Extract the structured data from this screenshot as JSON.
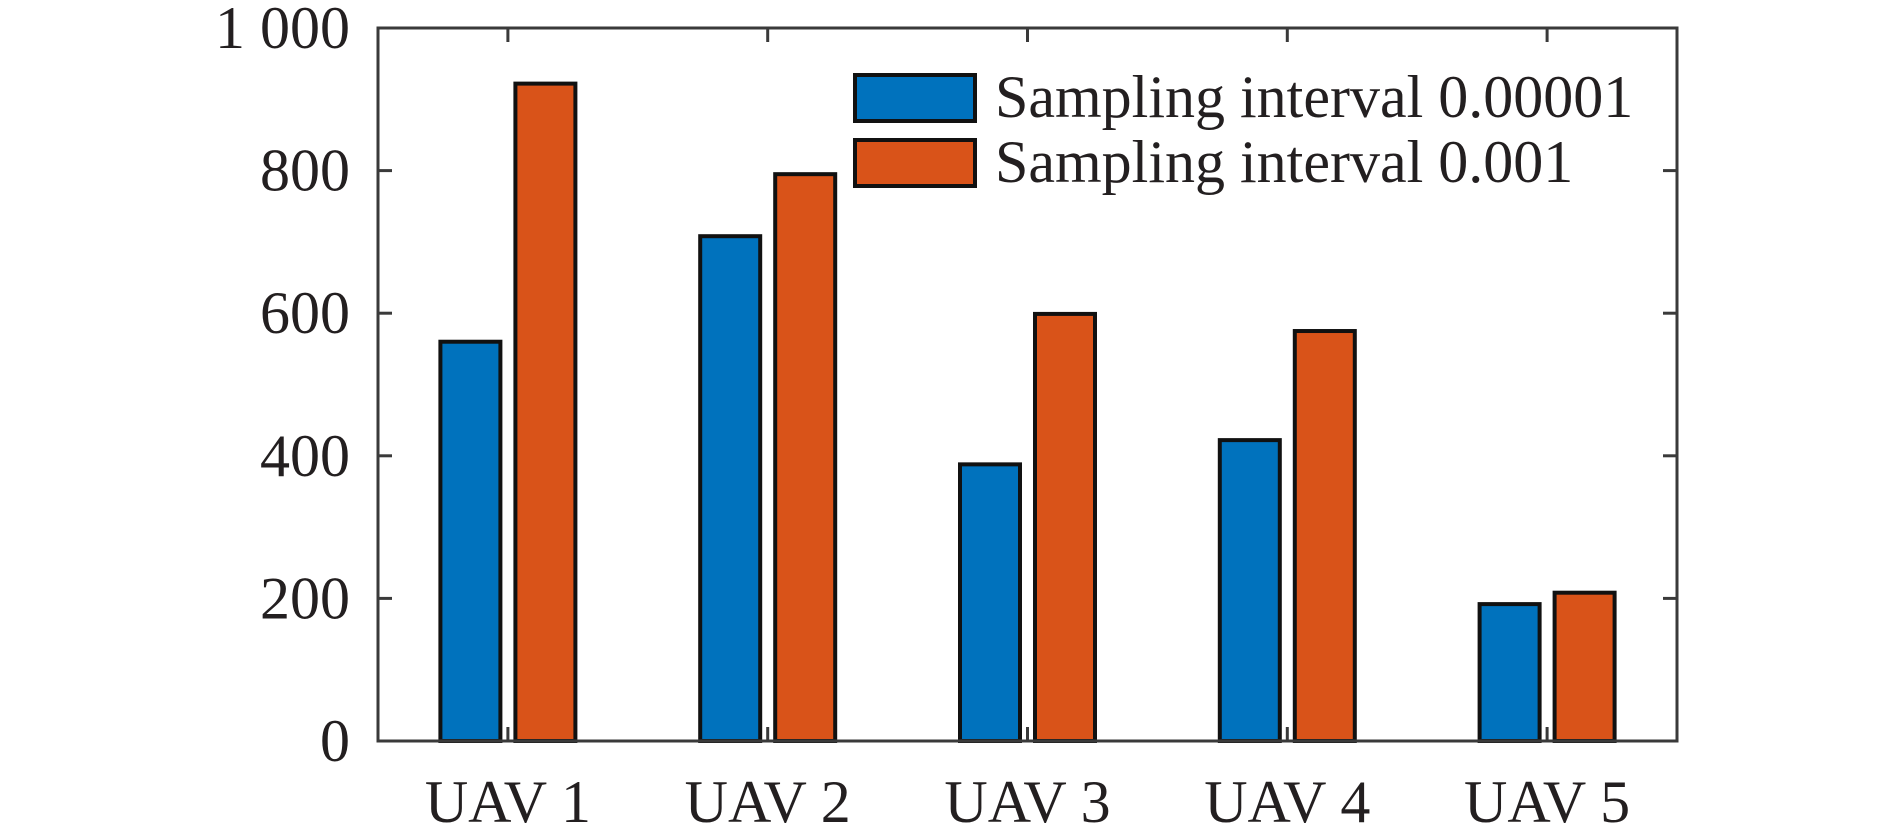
{
  "chart_data": {
    "type": "bar",
    "categories": [
      "UAV 1",
      "UAV 2",
      "UAV 3",
      "UAV 4",
      "UAV 5"
    ],
    "series": [
      {
        "name": "Sampling interval 0.00001",
        "color": "#0072bd",
        "values": [
          560,
          708,
          388,
          422,
          192
        ]
      },
      {
        "name": "Sampling interval 0.001",
        "color": "#d95319",
        "values": [
          922,
          795,
          599,
          575,
          208
        ]
      }
    ],
    "title": "",
    "xlabel": "",
    "ylabel": "",
    "ylim": [
      0,
      1000
    ],
    "yticks": [
      0,
      200,
      400,
      600,
      800,
      1000
    ],
    "ytick_labels": [
      "0",
      "200",
      "400",
      "600",
      "800",
      "1 000"
    ],
    "grid": false,
    "legend_position": "top-right"
  }
}
